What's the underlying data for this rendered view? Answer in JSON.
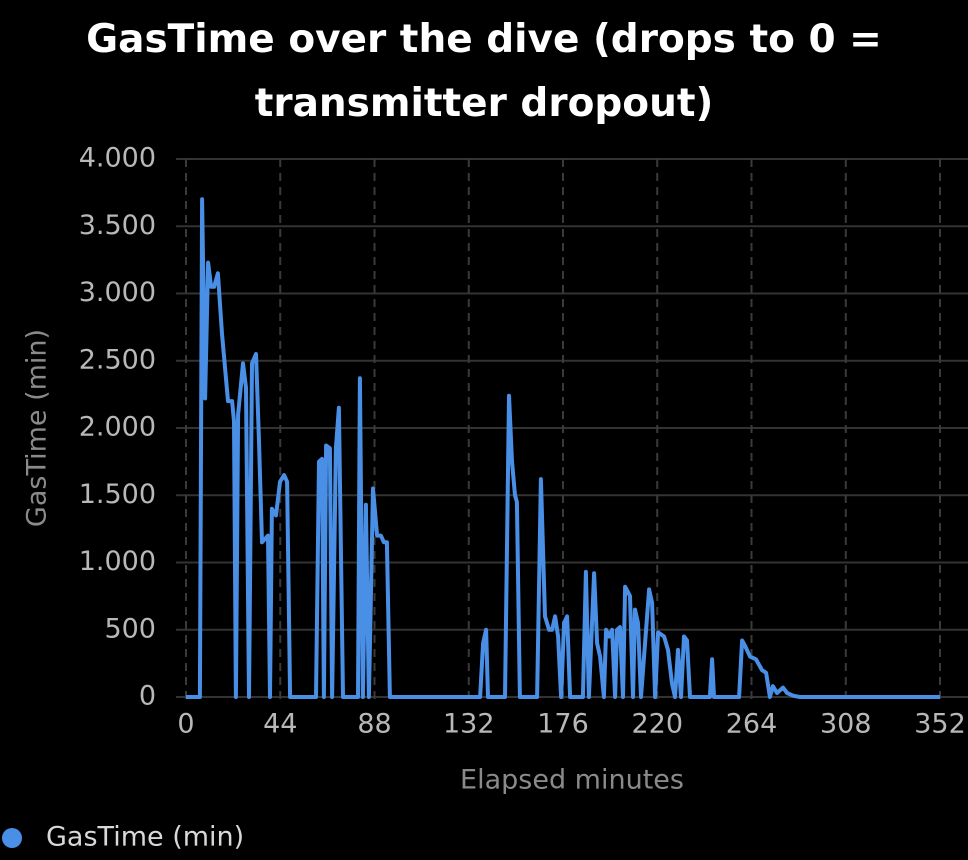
{
  "chart_data": {
    "type": "line",
    "title": "GasTime over the dive (drops to 0 = transmitter dropout)",
    "xlabel": "Elapsed minutes",
    "ylabel": "GasTime (min)",
    "x": [
      0,
      6.5,
      7.5,
      8.9,
      10.3,
      11.7,
      13.1,
      14.9,
      16.8,
      19.6,
      21.5,
      22.4,
      23.3,
      24.3,
      26.6,
      28.0,
      29.4,
      30.8,
      32.7,
      34.1,
      35.5,
      38.3,
      39.2,
      40.1,
      42.0,
      43.9,
      45.8,
      47.2,
      48.6,
      60.7,
      62.1,
      63.5,
      64.4,
      65.4,
      67.2,
      68.2,
      70.0,
      71.4,
      73.3,
      80.3,
      81.2,
      82.6,
      84.0,
      85.4,
      87.3,
      89.2,
      91.0,
      92.4,
      93.8,
      95.2,
      137.3,
      138.7,
      140.1,
      141.0,
      148.9,
      150.8,
      152.2,
      153.6,
      154.5,
      155.9,
      163.9,
      165.7,
      167.6,
      169.5,
      170.9,
      172.3,
      173.7,
      175.1,
      176.5,
      177.9,
      179.3,
      185.3,
      186.7,
      188.1,
      190.5,
      191.9,
      193.3,
      195.1,
      196.1,
      197.5,
      198.9,
      200.3,
      201.2,
      202.6,
      204.0,
      205.0,
      207.3,
      208.7,
      209.6,
      211.0,
      212.4,
      216.2,
      217.6,
      219.0,
      220.4,
      223.2,
      225.0,
      226.9,
      228.3,
      229.7,
      231.1,
      232.5,
      233.9,
      235.3,
      244.6,
      245.6,
      246.5,
      258.2,
      259.6,
      261.0,
      263.3,
      266.1,
      268.9,
      270.8,
      272.6,
      274.0,
      275.9,
      278.7,
      280.6,
      283.4,
      286.6,
      352
    ],
    "series": [
      {
        "name": "GasTime (min)",
        "color": "#4a8fe6",
        "values": [
          0,
          0,
          3700,
          2220,
          3230,
          3050,
          3050,
          3150,
          2700,
          2200,
          2200,
          2050,
          0,
          2100,
          2480,
          2300,
          0,
          2480,
          2550,
          1900,
          1150,
          1200,
          0,
          1400,
          1350,
          1600,
          1650,
          1600,
          0,
          0,
          1750,
          1770,
          0,
          1870,
          1850,
          0,
          1850,
          2150,
          0,
          0,
          2370,
          0,
          1430,
          0,
          1550,
          1200,
          1200,
          1150,
          1150,
          0,
          0,
          400,
          500,
          0,
          0,
          2240,
          1750,
          1500,
          1450,
          0,
          0,
          1620,
          600,
          500,
          500,
          600,
          450,
          0,
          550,
          600,
          0,
          0,
          930,
          0,
          920,
          400,
          300,
          0,
          500,
          450,
          500,
          0,
          500,
          520,
          0,
          820,
          750,
          0,
          650,
          550,
          0,
          800,
          700,
          0,
          480,
          450,
          350,
          100,
          0,
          350,
          0,
          450,
          420,
          0,
          0,
          280,
          0,
          0,
          420,
          380,
          300,
          280,
          200,
          180,
          0,
          80,
          30,
          70,
          30,
          10,
          0,
          0
        ]
      }
    ],
    "xlim": [
      0,
      352
    ],
    "xticks": [
      0,
      44,
      88,
      132,
      176,
      220,
      264,
      308,
      352
    ],
    "ylim": [
      0,
      4000
    ],
    "yticks": [
      0,
      500,
      {
        "value": 1000,
        "label": "1.000"
      },
      {
        "value": 1500,
        "label": "1.500"
      },
      {
        "value": 2000,
        "label": "2.000"
      },
      {
        "value": 2500,
        "label": "2.500"
      },
      {
        "value": 3000,
        "label": "3.000"
      },
      {
        "value": 3500,
        "label": "3.500"
      },
      {
        "value": 4000,
        "label": "4.000"
      }
    ],
    "grid": true,
    "legend": "bottom-left"
  }
}
